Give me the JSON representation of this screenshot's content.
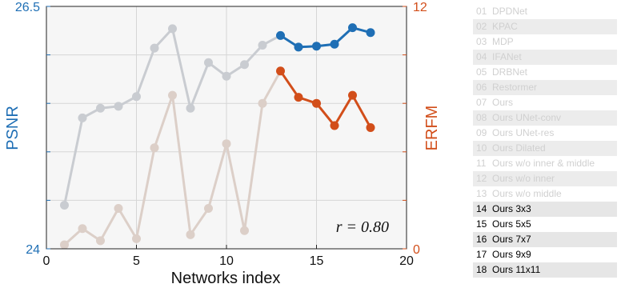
{
  "chart_data": {
    "type": "line",
    "xlabel": "Networks index",
    "ylabel_left": "PSNR",
    "ylabel_right": "ERFM",
    "xlim": [
      0,
      20
    ],
    "xticks": [
      0,
      5,
      10,
      15,
      20
    ],
    "ylim_left": [
      24,
      26.5
    ],
    "yticks_left": [
      24,
      26.5
    ],
    "ylim_right": [
      0,
      12
    ],
    "yticks_right": [
      0,
      12
    ],
    "grid": true,
    "annotation": "r = 0.80",
    "x": [
      1,
      2,
      3,
      4,
      5,
      6,
      7,
      8,
      9,
      10,
      11,
      12,
      13,
      14,
      15,
      16,
      17,
      18
    ],
    "series": [
      {
        "axis": "left",
        "color_dim": "#c9ccd1",
        "color_active": "#1f6fb5",
        "values": [
          24.45,
          25.35,
          25.45,
          25.47,
          25.57,
          26.07,
          26.27,
          25.45,
          25.92,
          25.78,
          25.9,
          26.1,
          26.2,
          26.08,
          26.09,
          26.11,
          26.28,
          26.23
        ]
      },
      {
        "axis": "right",
        "color_dim": "#dccfc8",
        "color_active": "#d24e1a",
        "values": [
          0.2,
          1.0,
          0.4,
          2.0,
          0.5,
          5.0,
          7.6,
          0.7,
          2.0,
          5.2,
          0.9,
          7.2,
          8.8,
          7.5,
          7.2,
          6.1,
          7.6,
          6.0
        ]
      }
    ],
    "active_from_index": 13,
    "axis_colors": {
      "left": "#1f6fb5",
      "right": "#d24e1a"
    },
    "legend": [
      {
        "num": "01",
        "label": "DPDNet"
      },
      {
        "num": "02",
        "label": "KPAC"
      },
      {
        "num": "03",
        "label": "MDP"
      },
      {
        "num": "04",
        "label": "IFANet"
      },
      {
        "num": "05",
        "label": "DRBNet"
      },
      {
        "num": "06",
        "label": "Restormer"
      },
      {
        "num": "07",
        "label": "Ours"
      },
      {
        "num": "08",
        "label": "Ours UNet-conv"
      },
      {
        "num": "09",
        "label": "Ours UNet-res"
      },
      {
        "num": "10",
        "label": "Ours Dilated"
      },
      {
        "num": "11",
        "label": "Ours w/o inner & middle"
      },
      {
        "num": "12",
        "label": "Ours w/o inner"
      },
      {
        "num": "13",
        "label": "Ours w/o middle"
      },
      {
        "num": "14",
        "label": "Ours 3x3"
      },
      {
        "num": "15",
        "label": "Ours 5x5"
      },
      {
        "num": "16",
        "label": "Ours 7x7"
      },
      {
        "num": "17",
        "label": "Ours 9x9"
      },
      {
        "num": "18",
        "label": "Ours 11x11"
      }
    ]
  }
}
